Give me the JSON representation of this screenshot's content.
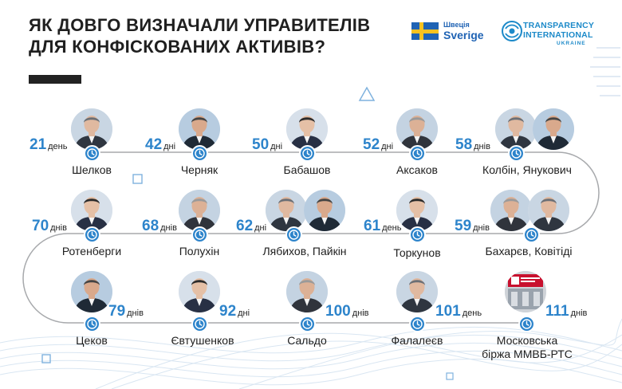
{
  "title": {
    "line1": "ЯК ДОВГО ВИЗНАЧАЛИ УПРАВИТЕЛІВ",
    "line2": "ДЛЯ КОНФІСКОВАНИХ АКТИВІВ?"
  },
  "logos": {
    "sweden_small": "Швеція",
    "sweden_big": "Sverige",
    "ti_line1": "TRANSPARENCY",
    "ti_line2": "INTERNATIONAL",
    "ti_line3": "UKRAINE"
  },
  "colors": {
    "accent": "#2d84cb",
    "dark": "#222222",
    "sweden_blue": "#1f63b4",
    "sweden_yellow": "#f7c21f"
  },
  "items": [
    {
      "days": "21",
      "unit": "день",
      "name": "Шелков"
    },
    {
      "days": "42",
      "unit": "дні",
      "name": "Черняк"
    },
    {
      "days": "50",
      "unit": "дні",
      "name": "Бабашов"
    },
    {
      "days": "52",
      "unit": "дні",
      "name": "Аксаков"
    },
    {
      "days": "58",
      "unit": "днів",
      "name": "Колбін, Янукович"
    },
    {
      "days": "59",
      "unit": "днів",
      "name": "Бахарєв, Ковітіді"
    },
    {
      "days": "61",
      "unit": "день",
      "name": "Торкунов"
    },
    {
      "days": "62",
      "unit": "дні",
      "name": "Лябихов, Пайкін"
    },
    {
      "days": "68",
      "unit": "днів",
      "name": "Полухін"
    },
    {
      "days": "70",
      "unit": "днів",
      "name": "Ротенберги"
    },
    {
      "days": "79",
      "unit": "днів",
      "name": "Цеков"
    },
    {
      "days": "92",
      "unit": "дні",
      "name": "Євтушенков"
    },
    {
      "days": "100",
      "unit": "днів",
      "name": "Сальдо"
    },
    {
      "days": "101",
      "unit": "день",
      "name": "Фалалеєв"
    },
    {
      "days": "111",
      "unit": "днів",
      "name": "Московська",
      "name2": "біржа ММВБ-РТС"
    }
  ]
}
